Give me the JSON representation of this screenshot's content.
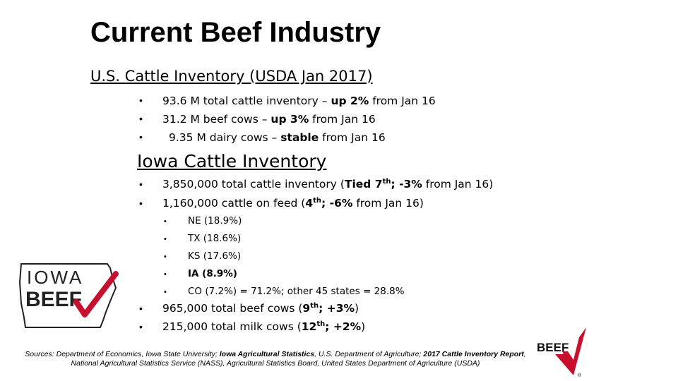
{
  "title": "Current Beef Industry",
  "us": {
    "heading": "U.S. Cattle Inventory (USDA Jan 2017)",
    "items": [
      {
        "pre": "93.6 M total cattle inventory – ",
        "bold": "up 2%",
        "post": " from Jan 16"
      },
      {
        "pre": "31.2 M beef cows – ",
        "bold": "up 3%",
        "post": " from Jan 16"
      },
      {
        "pre": "9.35 M dairy cows – ",
        "bold": "stable",
        "post": " from Jan 16"
      }
    ]
  },
  "iowa": {
    "heading": "Iowa Cattle Inventory",
    "item1": {
      "pre": "3,850,000 total cattle inventory (",
      "bold1": "Tied 7",
      "sup": "th",
      "bold2": "; -3%",
      "post": " from Jan 16)"
    },
    "item2": {
      "pre": "1,160,000 cattle on feed (",
      "bold1": "4",
      "sup": "th",
      "bold2": "; -6%",
      "post": " from Jan 16)"
    },
    "states": [
      "NE (18.9%)",
      "TX (18.6%)",
      "KS (17.6%)",
      "IA (8.9%)",
      "CO (7.2%) = 71.2%; other 45 states = 28.8%"
    ],
    "item3": {
      "pre": "965,000 total beef cows (",
      "bold1": "9",
      "sup": "th",
      "bold2": "; +3%",
      "post": ")"
    },
    "item4": {
      "pre": "215,000 total milk cows (",
      "bold1": "12",
      "sup": "th",
      "bold2": "; +2%",
      "post": ")"
    }
  },
  "bullet": "•",
  "logo_left": {
    "line1": "IOWA",
    "line2": "BEEF"
  },
  "logo_right": {
    "text": "BEEF",
    "reg": "®"
  },
  "footer": {
    "p1": "Sources:  Department of Economics, Iowa State University; ",
    "b1": "Iowa Agricultural Statistics",
    "p2": ", U.S. Department of Agriculture; ",
    "b2": "2017 Cattle Inventory Report",
    "p3": ", National Agricultural Statistics Service (NASS), Agricultural Statistics Board, United States Department of Agriculture (USDA)"
  },
  "colors": {
    "accent": "#c8102e",
    "text": "#000000"
  }
}
